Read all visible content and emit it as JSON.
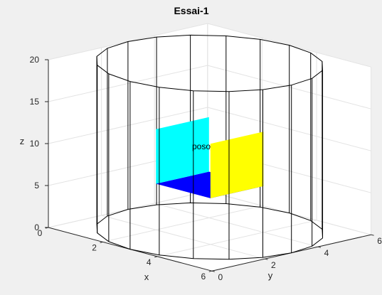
{
  "chart_data": {
    "type": "3d-scene",
    "title": "Essai-1",
    "xlabel": "x",
    "ylabel": "y",
    "zlabel": "z",
    "xlim": [
      0,
      6
    ],
    "ylim": [
      0,
      6
    ],
    "zlim": [
      0,
      20
    ],
    "x_ticks": [
      "0",
      "2",
      "4",
      "6"
    ],
    "y_ticks": [
      "0",
      "2",
      "4",
      "6"
    ],
    "z_ticks": [
      "0",
      "5",
      "10",
      "15",
      "20"
    ],
    "grid": true,
    "annotations": [
      {
        "text": "poso",
        "x": 3,
        "y": 3,
        "z": 10
      }
    ],
    "objects": [
      {
        "name": "cylinder-wireframe",
        "type": "cylinder",
        "center": [
          3,
          3
        ],
        "radius": 3,
        "z_range": [
          0,
          20
        ],
        "segments": 20,
        "color": "#000000"
      },
      {
        "name": "box",
        "type": "box",
        "x_range": [
          2,
          4
        ],
        "y_range": [
          2,
          4
        ],
        "z_range": [
          5.5,
          12
        ],
        "face_colors": {
          "front": "#00ffff",
          "right": "#ffff00",
          "bottom": "#0000ff"
        }
      }
    ]
  },
  "colors": {
    "figure_background": "#f0f0f0",
    "axes_background": "#ffffff",
    "grid": "#e3e3e3",
    "axis": "#262626"
  }
}
